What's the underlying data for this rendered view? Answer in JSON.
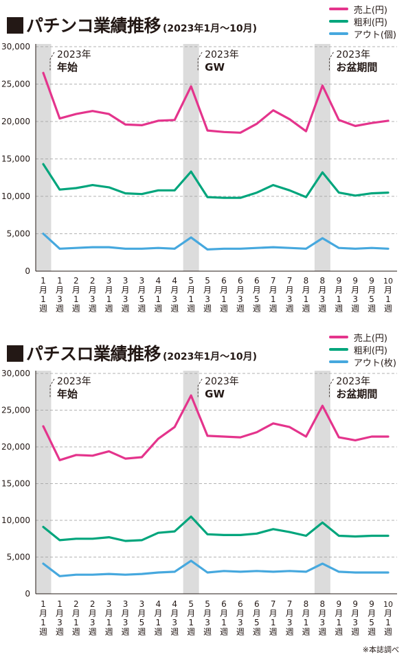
{
  "colors": {
    "sales": "#e4348c",
    "profit": "#00a57c",
    "out": "#46a8de",
    "band": "#dcdcdc",
    "grid": "#999999",
    "text": "#231815"
  },
  "note": "※本誌調べ",
  "chart_data": [
    {
      "type": "line",
      "title": "パチンコ業績推移",
      "subtitle": "(2023年1月〜10月)",
      "ylim": [
        0,
        30000
      ],
      "yticks": [
        "0",
        "5,000",
        "10,000",
        "15,000",
        "20,000",
        "25,000",
        "30,000"
      ],
      "grid": true,
      "legend_position": "top-right",
      "categories": [
        "1月1週",
        "1月3週",
        "2月1週",
        "2月3週",
        "3月1週",
        "3月3週",
        "3月5週",
        "4月1週",
        "4月3週",
        "5月1週",
        "5月3週",
        "6月1週",
        "6月3週",
        "6月5週",
        "7月1週",
        "7月3週",
        "8月1週",
        "8月3週",
        "9月1週",
        "9月3週",
        "9月5週",
        "10月1週"
      ],
      "x_labels": [
        [
          "1",
          "月",
          "1",
          "週"
        ],
        [
          "1",
          "月",
          "3",
          "週"
        ],
        [
          "2",
          "月",
          "1",
          "週"
        ],
        [
          "2",
          "月",
          "3",
          "週"
        ],
        [
          "3",
          "月",
          "1",
          "週"
        ],
        [
          "3",
          "月",
          "3",
          "週"
        ],
        [
          "3",
          "月",
          "5",
          "週"
        ],
        [
          "4",
          "月",
          "1",
          "週"
        ],
        [
          "4",
          "月",
          "3",
          "週"
        ],
        [
          "5",
          "月",
          "1",
          "週"
        ],
        [
          "5",
          "月",
          "3",
          "週"
        ],
        [
          "6",
          "月",
          "1",
          "週"
        ],
        [
          "6",
          "月",
          "3",
          "週"
        ],
        [
          "6",
          "月",
          "5",
          "週"
        ],
        [
          "7",
          "月",
          "1",
          "週"
        ],
        [
          "7",
          "月",
          "3",
          "週"
        ],
        [
          "8",
          "月",
          "1",
          "週"
        ],
        [
          "8",
          "月",
          "3",
          "週"
        ],
        [
          "9",
          "月",
          "1",
          "週"
        ],
        [
          "9",
          "月",
          "3",
          "週"
        ],
        [
          "9",
          "月",
          "5",
          "週"
        ],
        [
          "10",
          "月",
          "1",
          "週"
        ]
      ],
      "highlight_bands": [
        {
          "index": 0,
          "year": "2023年",
          "label": "年始"
        },
        {
          "index": 9,
          "year": "2023年",
          "label": "GW"
        },
        {
          "index": 17,
          "year": "2023年",
          "label": "お盆期間"
        }
      ],
      "series": [
        {
          "name": "売上(円)",
          "color_key": "sales",
          "values": [
            26500,
            20400,
            21000,
            21400,
            21000,
            19600,
            19500,
            20100,
            20200,
            24700,
            18800,
            18600,
            18500,
            19700,
            21500,
            20300,
            18700,
            24800,
            20200,
            19400,
            19800,
            20100
          ]
        },
        {
          "name": "粗利(円)",
          "color_key": "profit",
          "values": [
            14300,
            10900,
            11100,
            11500,
            11200,
            10400,
            10300,
            10800,
            10800,
            13300,
            9900,
            9800,
            9800,
            10500,
            11500,
            10800,
            9900,
            13200,
            10500,
            10100,
            10400,
            10500
          ]
        },
        {
          "name": "アウト(個)",
          "color_key": "out",
          "values": [
            5000,
            3000,
            3100,
            3200,
            3200,
            3000,
            3000,
            3100,
            3000,
            4500,
            2900,
            3000,
            3000,
            3100,
            3200,
            3100,
            3000,
            4400,
            3100,
            3000,
            3100,
            3000
          ]
        }
      ]
    },
    {
      "type": "line",
      "title": "パチスロ業績推移",
      "subtitle": "(2023年1月〜10月)",
      "ylim": [
        0,
        30000
      ],
      "yticks": [
        "0",
        "5,000",
        "10,000",
        "15,000",
        "20,000",
        "25,000",
        "30,000"
      ],
      "grid": true,
      "legend_position": "top-right",
      "categories": [
        "1月1週",
        "1月3週",
        "2月1週",
        "2月3週",
        "3月1週",
        "3月3週",
        "3月5週",
        "4月1週",
        "4月3週",
        "5月1週",
        "5月3週",
        "6月1週",
        "6月3週",
        "6月5週",
        "7月1週",
        "7月3週",
        "8月1週",
        "8月3週",
        "9月1週",
        "9月3週",
        "9月5週",
        "10月1週"
      ],
      "x_labels": [
        [
          "1",
          "月",
          "1",
          "週"
        ],
        [
          "1",
          "月",
          "3",
          "週"
        ],
        [
          "2",
          "月",
          "1",
          "週"
        ],
        [
          "2",
          "月",
          "3",
          "週"
        ],
        [
          "3",
          "月",
          "1",
          "週"
        ],
        [
          "3",
          "月",
          "3",
          "週"
        ],
        [
          "3",
          "月",
          "5",
          "週"
        ],
        [
          "4",
          "月",
          "1",
          "週"
        ],
        [
          "4",
          "月",
          "3",
          "週"
        ],
        [
          "5",
          "月",
          "1",
          "週"
        ],
        [
          "5",
          "月",
          "3",
          "週"
        ],
        [
          "6",
          "月",
          "1",
          "週"
        ],
        [
          "6",
          "月",
          "3",
          "週"
        ],
        [
          "6",
          "月",
          "5",
          "週"
        ],
        [
          "7",
          "月",
          "1",
          "週"
        ],
        [
          "7",
          "月",
          "3",
          "週"
        ],
        [
          "8",
          "月",
          "1",
          "週"
        ],
        [
          "8",
          "月",
          "3",
          "週"
        ],
        [
          "9",
          "月",
          "1",
          "週"
        ],
        [
          "9",
          "月",
          "3",
          "週"
        ],
        [
          "9",
          "月",
          "5",
          "週"
        ],
        [
          "10",
          "月",
          "1",
          "週"
        ]
      ],
      "highlight_bands": [
        {
          "index": 0,
          "year": "2023年",
          "label": "年始"
        },
        {
          "index": 9,
          "year": "2023年",
          "label": "GW"
        },
        {
          "index": 17,
          "year": "2023年",
          "label": "お盆期間"
        }
      ],
      "series": [
        {
          "name": "売上(円)",
          "color_key": "sales",
          "values": [
            22800,
            18200,
            18900,
            18800,
            19400,
            18400,
            18600,
            21100,
            22700,
            27000,
            21500,
            21400,
            21300,
            22000,
            23200,
            22700,
            21400,
            25600,
            21300,
            20900,
            21400,
            21400
          ]
        },
        {
          "name": "粗利(円)",
          "color_key": "profit",
          "values": [
            9100,
            7300,
            7500,
            7500,
            7700,
            7200,
            7300,
            8300,
            8500,
            10500,
            8100,
            8000,
            8000,
            8200,
            8800,
            8400,
            7900,
            9700,
            7900,
            7800,
            7900,
            7900
          ]
        },
        {
          "name": "アウト(枚)",
          "color_key": "out",
          "values": [
            4100,
            2400,
            2600,
            2600,
            2700,
            2600,
            2700,
            2900,
            3000,
            4500,
            2900,
            3100,
            3000,
            3100,
            3000,
            3100,
            3000,
            4100,
            3000,
            2900,
            2900,
            2900
          ]
        }
      ]
    }
  ]
}
